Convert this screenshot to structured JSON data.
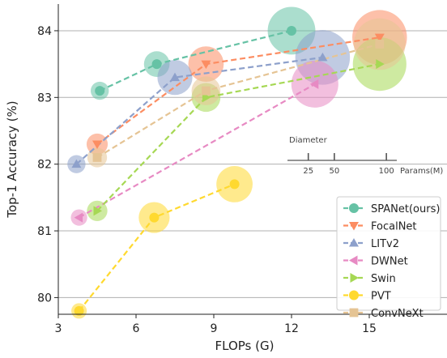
{
  "chart_data": {
    "type": "scatter",
    "xlabel": "FLOPs (G)",
    "ylabel": "Top-1 Accuracy (%)",
    "xlim": [
      3,
      18
    ],
    "ylim": [
      79.75,
      84.4
    ],
    "xticks": [
      "3",
      "6",
      "9",
      "12",
      "15"
    ],
    "xtick_values": [
      3,
      6,
      9,
      12,
      15
    ],
    "yticks": [
      "80",
      "81",
      "82",
      "83",
      "84"
    ],
    "ytick_values": [
      80,
      81,
      82,
      83,
      84
    ],
    "grid": "horizontal",
    "legend_position": "bottom-right",
    "series": [
      {
        "name": "SPANet(ours)",
        "color": "#66c2a5",
        "marker": "circle",
        "points": [
          {
            "x": 4.6,
            "y": 83.1,
            "params": 11
          },
          {
            "x": 6.8,
            "y": 83.5,
            "params": 22
          },
          {
            "x": 12.0,
            "y": 84.0,
            "params": 76
          }
        ]
      },
      {
        "name": "FocalNet",
        "color": "#fc8d62",
        "marker": "triangle-down",
        "points": [
          {
            "x": 4.5,
            "y": 82.3,
            "params": 15
          },
          {
            "x": 8.7,
            "y": 83.5,
            "params": 42
          },
          {
            "x": 15.4,
            "y": 83.9,
            "params": 100
          }
        ]
      },
      {
        "name": "LITv2",
        "color": "#8da0cb",
        "marker": "triangle-up",
        "points": [
          {
            "x": 3.7,
            "y": 82.0,
            "params": 11
          },
          {
            "x": 7.5,
            "y": 83.3,
            "params": 41
          },
          {
            "x": 13.2,
            "y": 83.6,
            "params": 100
          }
        ]
      },
      {
        "name": "DWNet",
        "color": "#e78ac3",
        "marker": "triangle-left",
        "points": [
          {
            "x": 3.8,
            "y": 81.2,
            "params": 9
          },
          {
            "x": 12.9,
            "y": 83.2,
            "params": 74
          }
        ]
      },
      {
        "name": "Swin",
        "color": "#a6d854",
        "marker": "triangle-right",
        "points": [
          {
            "x": 4.5,
            "y": 81.3,
            "params": 14
          },
          {
            "x": 8.7,
            "y": 83.0,
            "params": 28
          },
          {
            "x": 15.4,
            "y": 83.5,
            "params": 96
          }
        ]
      },
      {
        "name": "PVT",
        "color": "#ffd92f",
        "marker": "circle",
        "points": [
          {
            "x": 3.8,
            "y": 79.8,
            "params": 8
          },
          {
            "x": 6.7,
            "y": 81.2,
            "params": 32
          },
          {
            "x": 9.8,
            "y": 81.7,
            "params": 44
          }
        ]
      },
      {
        "name": "ConvNeXt",
        "color": "#e5c494",
        "marker": "square",
        "points": [
          {
            "x": 4.5,
            "y": 82.1,
            "params": 13
          },
          {
            "x": 8.7,
            "y": 83.1,
            "params": 28
          },
          {
            "x": 15.4,
            "y": 83.8,
            "params": 89
          }
        ]
      }
    ],
    "size_legend": {
      "title": "Diameter",
      "ticks": [
        "25",
        "50",
        "100"
      ],
      "tick_values": [
        25,
        50,
        100
      ],
      "unit_label": "Params(M)"
    }
  }
}
